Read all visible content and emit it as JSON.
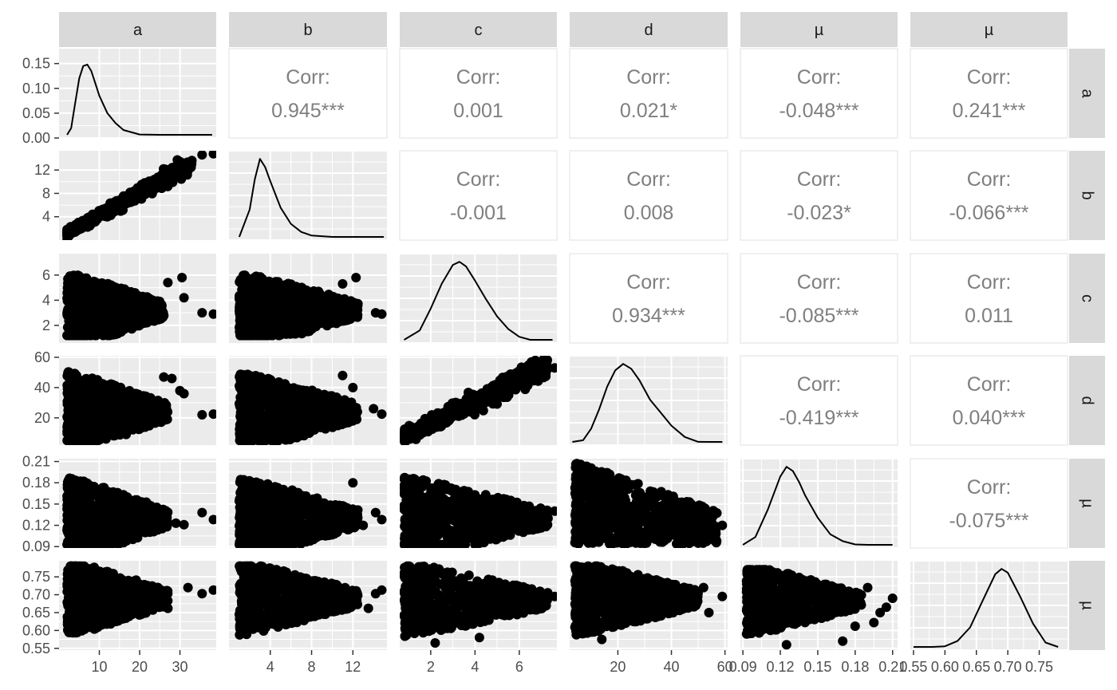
{
  "chart_data": {
    "type": "scatter",
    "subtype": "pairs-matrix",
    "variables": [
      "a",
      "b",
      "c",
      "d",
      "µ",
      "µ"
    ],
    "colors": {
      "panel_background": "#ebebeb",
      "grid": "#ffffff",
      "strip_background": "#d9d9d9",
      "points": "#000000",
      "corr_text": "#7f7f7f",
      "tick_text": "#4d4d4d"
    },
    "axes": [
      {
        "range": [
          0,
          39
        ],
        "ticks": [
          10,
          20,
          30
        ],
        "density_ticks": [
          "0.00",
          "0.05",
          "0.10",
          "0.15"
        ],
        "density_max": 0.18
      },
      {
        "range": [
          0,
          15.3
        ],
        "ticks": [
          4,
          8,
          12
        ]
      },
      {
        "range": [
          0.6,
          7.7
        ],
        "ticks": [
          2,
          4,
          6
        ]
      },
      {
        "range": [
          2,
          61
        ],
        "ticks": [
          20,
          40,
          60
        ]
      },
      {
        "range": [
          0.088,
          0.214
        ],
        "ticks": [
          0.09,
          0.12,
          0.15,
          0.18,
          0.21
        ],
        "tick_labels": [
          "0.09",
          "0.12",
          "0.15",
          "0.18",
          "0.21"
        ]
      },
      {
        "range": [
          0.545,
          0.795
        ],
        "ticks": [
          0.55,
          0.6,
          0.65,
          0.7,
          0.75
        ],
        "tick_labels": [
          "0.55",
          "0.60",
          "0.65",
          "0.70",
          "0.75"
        ]
      }
    ],
    "correlations": [
      {
        "row": 0,
        "col": 1,
        "label": "Corr:",
        "value": "0.945***"
      },
      {
        "row": 0,
        "col": 2,
        "label": "Corr:",
        "value": "0.001"
      },
      {
        "row": 0,
        "col": 3,
        "label": "Corr:",
        "value": "0.021*"
      },
      {
        "row": 0,
        "col": 4,
        "label": "Corr:",
        "value": "-0.048***"
      },
      {
        "row": 0,
        "col": 5,
        "label": "Corr:",
        "value": "0.241***"
      },
      {
        "row": 1,
        "col": 2,
        "label": "Corr:",
        "value": "-0.001"
      },
      {
        "row": 1,
        "col": 3,
        "label": "Corr:",
        "value": "0.008"
      },
      {
        "row": 1,
        "col": 4,
        "label": "Corr:",
        "value": "-0.023*"
      },
      {
        "row": 1,
        "col": 5,
        "label": "Corr:",
        "value": "-0.066***"
      },
      {
        "row": 2,
        "col": 3,
        "label": "Corr:",
        "value": "0.934***"
      },
      {
        "row": 2,
        "col": 4,
        "label": "Corr:",
        "value": "-0.085***"
      },
      {
        "row": 2,
        "col": 5,
        "label": "Corr:",
        "value": "0.011"
      },
      {
        "row": 3,
        "col": 4,
        "label": "Corr:",
        "value": "-0.419***"
      },
      {
        "row": 3,
        "col": 5,
        "label": "Corr:",
        "value": "0.040***"
      },
      {
        "row": 4,
        "col": 5,
        "label": "Corr:",
        "value": "-0.075***"
      }
    ],
    "densities": [
      {
        "var": 0,
        "x": [
          2,
          3,
          4,
          5,
          6,
          7,
          8,
          9,
          10,
          12,
          14,
          16,
          20,
          25,
          30,
          35,
          38
        ],
        "y": [
          0.002,
          0.02,
          0.07,
          0.12,
          0.145,
          0.148,
          0.135,
          0.11,
          0.085,
          0.05,
          0.03,
          0.016,
          0.007,
          0.003,
          0.001,
          0.0005,
          0.0002
        ]
      },
      {
        "var": 1,
        "x": [
          1,
          2,
          2.5,
          3,
          3.5,
          4,
          5,
          6,
          7,
          8,
          10,
          12,
          15
        ],
        "y": [
          0.02,
          0.3,
          0.6,
          0.8,
          0.72,
          0.58,
          0.32,
          0.16,
          0.08,
          0.045,
          0.02,
          0.01,
          0.005
        ]
      },
      {
        "var": 2,
        "x": [
          0.8,
          1.5,
          2,
          2.5,
          3,
          3.3,
          3.6,
          4,
          4.5,
          5,
          5.5,
          6,
          6.5,
          7,
          7.5
        ],
        "y": [
          0.01,
          0.08,
          0.22,
          0.38,
          0.5,
          0.52,
          0.49,
          0.4,
          0.28,
          0.17,
          0.09,
          0.04,
          0.02,
          0.012,
          0.01
        ]
      },
      {
        "var": 3,
        "x": [
          3,
          7,
          10,
          13,
          16,
          19,
          22,
          25,
          28,
          32,
          36,
          40,
          45,
          50,
          55,
          59
        ],
        "y": [
          0.0005,
          0.003,
          0.01,
          0.022,
          0.036,
          0.046,
          0.05,
          0.047,
          0.04,
          0.028,
          0.02,
          0.012,
          0.005,
          0.002,
          0.0012,
          0.001
        ]
      },
      {
        "var": 4,
        "x": [
          0.09,
          0.1,
          0.11,
          0.12,
          0.125,
          0.13,
          0.135,
          0.14,
          0.15,
          0.16,
          0.17,
          0.18,
          0.19,
          0.2,
          0.21
        ],
        "y": [
          1,
          4,
          14,
          26,
          29.5,
          28,
          24,
          19,
          11,
          5,
          2.5,
          1.3,
          0.9,
          0.7,
          0.6
        ]
      },
      {
        "var": 5,
        "x": [
          0.55,
          0.58,
          0.6,
          0.62,
          0.64,
          0.66,
          0.68,
          0.69,
          0.7,
          0.72,
          0.74,
          0.76,
          0.78
        ],
        "y": [
          0.1,
          0.2,
          0.5,
          1.2,
          3,
          6.5,
          10,
          10.7,
          10.2,
          7,
          3.5,
          1,
          0.3
        ]
      }
    ],
    "scatter_shapes": [
      {
        "row": 1,
        "col": 0,
        "kind": "linear",
        "slope": 0.392,
        "intercept": 0.3,
        "sd": 0.45,
        "xmin": 2,
        "xmax": 33,
        "outliers": [
          [
            35.5,
            14.6
          ],
          [
            38.3,
            14.8
          ],
          [
            30.5,
            12.3
          ]
        ]
      },
      {
        "row": 2,
        "col": 0,
        "kind": "blob",
        "xmin": 2,
        "xmax": 26,
        "ymin": 1.2,
        "ymax": 7.2,
        "ycenter": 3.2,
        "outliers": [
          [
            30.5,
            5.8
          ],
          [
            31,
            4.2
          ],
          [
            35.5,
            3.0
          ],
          [
            38.3,
            2.9
          ],
          [
            27,
            5.4
          ]
        ]
      },
      {
        "row": 2,
        "col": 1,
        "kind": "blob",
        "xmin": 1,
        "xmax": 12.5,
        "ymin": 1.2,
        "ymax": 7.2,
        "ycenter": 3.2,
        "outliers": [
          [
            12.3,
            5.8
          ],
          [
            14.2,
            3.0
          ],
          [
            14.8,
            2.9
          ],
          [
            11,
            5.3
          ]
        ]
      },
      {
        "row": 3,
        "col": 0,
        "kind": "blob",
        "xmin": 2,
        "xmax": 27,
        "ymin": 5,
        "ymax": 58,
        "ycenter": 24,
        "outliers": [
          [
            35.5,
            22
          ],
          [
            38.3,
            22.5
          ],
          [
            31,
            36
          ],
          [
            30,
            38
          ],
          [
            26,
            47
          ],
          [
            28,
            46
          ]
        ]
      },
      {
        "row": 3,
        "col": 1,
        "kind": "blob",
        "xmin": 1,
        "xmax": 12.5,
        "ymin": 5,
        "ymax": 58,
        "ycenter": 24,
        "outliers": [
          [
            14,
            26
          ],
          [
            14.8,
            22.5
          ],
          [
            12,
            40
          ],
          [
            11,
            48
          ]
        ]
      },
      {
        "row": 3,
        "col": 2,
        "kind": "linear",
        "slope": 7.3,
        "intercept": 1.5,
        "sd": 2.8,
        "xmin": 0.8,
        "xmax": 7.3,
        "outliers": [
          [
            7.6,
            53
          ],
          [
            7.2,
            58
          ]
        ]
      },
      {
        "row": 4,
        "col": 0,
        "kind": "blob",
        "xmin": 2,
        "xmax": 27,
        "ymin": 0.093,
        "ymax": 0.21,
        "ycenter": 0.13,
        "outliers": [
          [
            35.5,
            0.138
          ],
          [
            38.3,
            0.128
          ],
          [
            31,
            0.121
          ],
          [
            29,
            0.123
          ]
        ]
      },
      {
        "row": 4,
        "col": 1,
        "kind": "blob",
        "xmin": 1,
        "xmax": 12.5,
        "ymin": 0.093,
        "ymax": 0.21,
        "ycenter": 0.13,
        "outliers": [
          [
            14.2,
            0.138
          ],
          [
            14.8,
            0.128
          ],
          [
            12,
            0.18
          ],
          [
            13,
            0.12
          ]
        ]
      },
      {
        "row": 4,
        "col": 2,
        "kind": "blob",
        "xmin": 0.8,
        "xmax": 7.3,
        "ymin": 0.093,
        "ymax": 0.21,
        "ycenter": 0.13,
        "outliers": [
          [
            7.6,
            0.14
          ],
          [
            7.3,
            0.13
          ]
        ]
      },
      {
        "row": 4,
        "col": 3,
        "kind": "decay",
        "xmin": 4,
        "xmax": 57,
        "ymin": 0.093,
        "ymax": 0.21,
        "outliers": [
          [
            59,
            0.12
          ],
          [
            55,
            0.13
          ]
        ]
      },
      {
        "row": 5,
        "col": 0,
        "kind": "blob",
        "xmin": 2,
        "xmax": 27,
        "ymin": 0.57,
        "ymax": 0.78,
        "ycenter": 0.69,
        "outliers": [
          [
            35.5,
            0.703
          ],
          [
            38.3,
            0.713
          ],
          [
            27,
            0.662
          ],
          [
            32,
            0.72
          ]
        ]
      },
      {
        "row": 5,
        "col": 1,
        "kind": "blob",
        "xmin": 1,
        "xmax": 12.5,
        "ymin": 0.57,
        "ymax": 0.78,
        "ycenter": 0.69,
        "outliers": [
          [
            14.2,
            0.703
          ],
          [
            14.8,
            0.713
          ],
          [
            13.5,
            0.662
          ]
        ]
      },
      {
        "row": 5,
        "col": 2,
        "kind": "blob",
        "xmin": 0.8,
        "xmax": 7.3,
        "ymin": 0.57,
        "ymax": 0.78,
        "ycenter": 0.685,
        "outliers": [
          [
            7.6,
            0.695
          ],
          [
            2.2,
            0.565
          ],
          [
            4.2,
            0.58
          ]
        ]
      },
      {
        "row": 5,
        "col": 3,
        "kind": "blob",
        "xmin": 4,
        "xmax": 50,
        "ymin": 0.57,
        "ymax": 0.78,
        "ycenter": 0.69,
        "outliers": [
          [
            59,
            0.695
          ],
          [
            54,
            0.65
          ],
          [
            52,
            0.72
          ],
          [
            14,
            0.575
          ]
        ]
      },
      {
        "row": 5,
        "col": 4,
        "kind": "blob",
        "xmin": 0.093,
        "xmax": 0.185,
        "ymin": 0.57,
        "ymax": 0.77,
        "ycenter": 0.685,
        "outliers": [
          [
            0.21,
            0.69
          ],
          [
            0.205,
            0.665
          ],
          [
            0.2,
            0.65
          ],
          [
            0.195,
            0.622
          ],
          [
            0.18,
            0.612
          ],
          [
            0.17,
            0.57
          ],
          [
            0.125,
            0.56
          ],
          [
            0.19,
            0.72
          ]
        ]
      }
    ]
  }
}
